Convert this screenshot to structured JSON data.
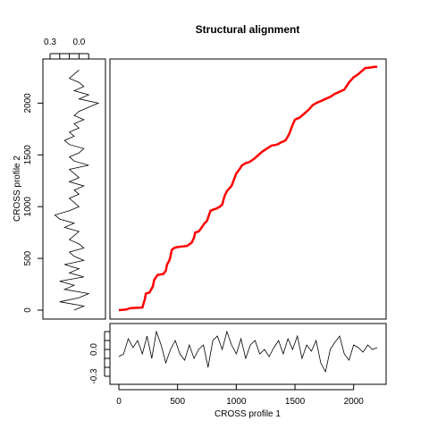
{
  "chart_data": [
    {
      "type": "line",
      "title": "Structural alignment",
      "xlabel": "",
      "ylabel": "",
      "xlim": [
        0,
        2200
      ],
      "ylim": [
        0,
        2340
      ],
      "grid": false,
      "series": [
        {
          "color": "#ff0000",
          "x": [
            0,
            60,
            100,
            200,
            220,
            230,
            260,
            290,
            300,
            330,
            380,
            400,
            410,
            430,
            440,
            450,
            460,
            470,
            500,
            580,
            620,
            640,
            650,
            680,
            700,
            730,
            750,
            780,
            800,
            830,
            860,
            880,
            900,
            920,
            960,
            1000,
            1020,
            1050,
            1080,
            1110,
            1150,
            1180,
            1220,
            1260,
            1300,
            1350,
            1380,
            1420,
            1450,
            1480,
            1500,
            1520,
            1540,
            1580,
            1620,
            1650,
            1680,
            1700,
            1720,
            1760,
            1800,
            1840,
            1880,
            1920,
            1960,
            2000,
            2040,
            2060,
            2080,
            2100,
            2120,
            2150,
            2180,
            2200
          ],
          "y": [
            0,
            5,
            20,
            25,
            100,
            160,
            170,
            230,
            290,
            340,
            350,
            380,
            440,
            480,
            520,
            580,
            590,
            600,
            610,
            620,
            650,
            700,
            750,
            760,
            790,
            840,
            860,
            960,
            970,
            980,
            1000,
            1020,
            1100,
            1150,
            1200,
            1320,
            1350,
            1400,
            1420,
            1430,
            1460,
            1490,
            1530,
            1560,
            1590,
            1600,
            1620,
            1640,
            1700,
            1790,
            1840,
            1850,
            1860,
            1900,
            1940,
            1980,
            2000,
            2010,
            2020,
            2040,
            2060,
            2090,
            2110,
            2130,
            2200,
            2250,
            2280,
            2300,
            2320,
            2340,
            2340,
            2345,
            2350,
            2350
          ]
        }
      ]
    },
    {
      "type": "line",
      "title": "",
      "xlabel": "",
      "ylabel": "CROSS profile 2",
      "ylim": [
        0,
        2340
      ],
      "xlim": [
        0.3,
        -0.2
      ],
      "xticks": [
        "0.3",
        "0.0"
      ],
      "yticks": [
        "0",
        "500",
        "1000",
        "1500",
        "2000"
      ],
      "series": [
        {
          "color": "#000000",
          "y": [
            0,
            40,
            80,
            120,
            160,
            200,
            240,
            280,
            320,
            360,
            400,
            440,
            480,
            520,
            560,
            600,
            640,
            680,
            720,
            760,
            800,
            840,
            880,
            920,
            960,
            1000,
            1040,
            1080,
            1120,
            1160,
            1200,
            1240,
            1280,
            1320,
            1360,
            1400,
            1440,
            1480,
            1520,
            1560,
            1600,
            1640,
            1680,
            1720,
            1760,
            1800,
            1840,
            1880,
            1920,
            1960,
            2000,
            2040,
            2080,
            2120,
            2160,
            2200,
            2240,
            2280,
            2320
          ],
          "values": [
            0.05,
            -0.05,
            0.2,
            0.0,
            -0.1,
            0.15,
            0.05,
            0.2,
            -0.05,
            0.1,
            0.0,
            0.15,
            -0.05,
            0.05,
            0.1,
            -0.05,
            0.0,
            0.1,
            0.05,
            0.0,
            0.15,
            0.05,
            0.2,
            0.25,
            0.1,
            0.0,
            0.05,
            0.1,
            0.0,
            0.05,
            -0.05,
            0.1,
            0.0,
            0.05,
            0.1,
            -0.1,
            0.05,
            0.1,
            0.0,
            -0.05,
            0.1,
            0.15,
            0.05,
            0.1,
            0.0,
            0.05,
            -0.05,
            0.05,
            0.0,
            -0.1,
            -0.2,
            0.0,
            -0.1,
            0.05,
            -0.05,
            0.0,
            0.1,
            0.05,
            0.0
          ]
        }
      ]
    },
    {
      "type": "line",
      "title": "",
      "xlabel": "CROSS profile 1",
      "ylabel": "",
      "xlim": [
        -50,
        2250
      ],
      "ylim": [
        -0.35,
        0.25
      ],
      "xticks": [
        "0",
        "500",
        "1000",
        "1500",
        "2000"
      ],
      "yticks": [
        "0.0",
        "-0.3"
      ],
      "series": [
        {
          "color": "#000000",
          "x": [
            0,
            40,
            80,
            120,
            160,
            200,
            240,
            280,
            320,
            360,
            400,
            440,
            480,
            520,
            560,
            600,
            640,
            680,
            720,
            760,
            800,
            840,
            880,
            920,
            960,
            1000,
            1040,
            1080,
            1120,
            1160,
            1200,
            1240,
            1280,
            1320,
            1360,
            1400,
            1440,
            1480,
            1520,
            1560,
            1600,
            1640,
            1680,
            1720,
            1760,
            1800,
            1840,
            1880,
            1920,
            1960,
            2000,
            2040,
            2080,
            2120,
            2160,
            2200
          ],
          "values": [
            -0.08,
            -0.05,
            0.12,
            0.02,
            0.1,
            -0.05,
            0.15,
            -0.1,
            0.2,
            0.05,
            -0.15,
            0.0,
            0.1,
            -0.05,
            -0.12,
            0.05,
            -0.1,
            0.0,
            0.05,
            -0.2,
            0.1,
            0.15,
            0.0,
            0.2,
            0.05,
            -0.05,
            0.12,
            -0.1,
            0.05,
            0.1,
            -0.05,
            0.0,
            -0.08,
            0.02,
            0.1,
            -0.05,
            0.12,
            0.0,
            0.15,
            -0.1,
            0.05,
            -0.02,
            0.1,
            -0.15,
            -0.25,
            0.0,
            0.08,
            0.15,
            -0.05,
            -0.12,
            0.05,
            0.02,
            -0.03,
            0.05,
            0.0,
            0.02
          ]
        }
      ]
    }
  ]
}
